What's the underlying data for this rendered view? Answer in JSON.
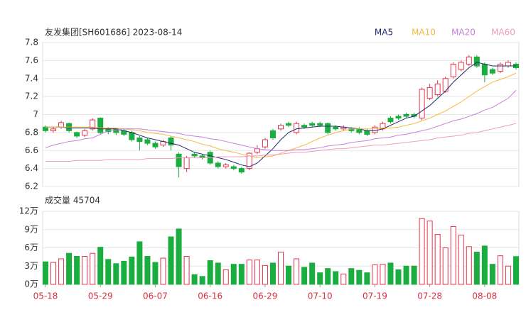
{
  "chart_data": [
    {
      "type": "candlestick",
      "title": "友发集团[SH601686] 2023-08-14",
      "up_color": "#e8334a",
      "down_color": "#1aad3f",
      "ylim": [
        6.2,
        7.8
      ],
      "yticks": [
        6.2,
        6.4,
        6.6,
        6.8,
        7,
        7.2,
        7.4,
        7.6,
        7.8
      ],
      "grid": true,
      "open": [
        6.86,
        6.82,
        6.86,
        6.9,
        6.8,
        6.77,
        6.84,
        6.96,
        6.84,
        6.84,
        6.82,
        6.8,
        6.74,
        6.72,
        6.68,
        6.66,
        6.74,
        6.56,
        6.4,
        6.56,
        6.54,
        6.58,
        6.46,
        6.42,
        6.42,
        6.4,
        6.4,
        6.58,
        6.64,
        6.82,
        6.84,
        6.9,
        6.8,
        6.88,
        6.9,
        6.9,
        6.9,
        6.86,
        6.84,
        6.84,
        6.84,
        6.82,
        6.8,
        6.84,
        6.96,
        6.98,
        7.0,
        7.0,
        6.96,
        7.18,
        7.22,
        7.26,
        7.42,
        7.5,
        7.56,
        7.64,
        7.56,
        7.5,
        7.48,
        7.54,
        7.56
      ],
      "high": [
        6.88,
        6.86,
        6.93,
        6.91,
        6.81,
        6.84,
        6.96,
        6.97,
        6.86,
        6.85,
        6.84,
        6.82,
        6.76,
        6.74,
        6.7,
        6.72,
        6.76,
        6.58,
        6.54,
        6.58,
        6.56,
        6.6,
        6.48,
        6.46,
        6.44,
        6.42,
        6.58,
        6.66,
        6.74,
        6.84,
        6.9,
        6.92,
        6.92,
        6.9,
        6.92,
        6.92,
        6.91,
        6.88,
        6.88,
        6.86,
        6.86,
        6.84,
        6.88,
        6.92,
        6.98,
        7.0,
        7.02,
        7.02,
        7.3,
        7.34,
        7.38,
        7.42,
        7.58,
        7.6,
        7.66,
        7.66,
        7.58,
        7.52,
        7.58,
        7.6,
        7.58
      ],
      "low": [
        6.8,
        6.8,
        6.84,
        6.8,
        6.74,
        6.75,
        6.82,
        6.78,
        6.78,
        6.77,
        6.76,
        6.7,
        6.6,
        6.66,
        6.62,
        6.64,
        6.6,
        6.3,
        6.36,
        6.52,
        6.5,
        6.44,
        6.4,
        6.4,
        6.38,
        6.34,
        6.38,
        6.56,
        6.62,
        6.72,
        6.82,
        6.86,
        6.78,
        6.84,
        6.86,
        6.86,
        6.78,
        6.82,
        6.82,
        6.8,
        6.78,
        6.76,
        6.78,
        6.82,
        6.9,
        6.94,
        6.96,
        6.96,
        6.94,
        7.16,
        7.2,
        7.24,
        7.4,
        7.48,
        7.54,
        7.52,
        7.36,
        7.44,
        7.46,
        7.52,
        7.5
      ],
      "close": [
        6.82,
        6.84,
        6.91,
        6.82,
        6.76,
        6.82,
        6.94,
        6.8,
        6.81,
        6.8,
        6.78,
        6.72,
        6.7,
        6.68,
        6.64,
        6.7,
        6.66,
        6.42,
        6.52,
        6.54,
        6.52,
        6.46,
        6.42,
        6.44,
        6.4,
        6.36,
        6.57,
        6.62,
        6.72,
        6.74,
        6.88,
        6.88,
        6.9,
        6.86,
        6.88,
        6.88,
        6.8,
        6.84,
        6.86,
        6.82,
        6.8,
        6.78,
        6.86,
        6.9,
        6.92,
        6.96,
        6.98,
        6.98,
        7.28,
        7.3,
        7.34,
        7.4,
        7.56,
        7.58,
        7.64,
        7.54,
        7.44,
        7.46,
        7.56,
        7.58,
        7.52
      ],
      "series": [
        {
          "name": "MA5",
          "color": "#1e2a6e",
          "values": [
            6.86,
            6.86,
            6.86,
            6.85,
            6.85,
            6.85,
            6.85,
            6.84,
            6.84,
            6.84,
            6.82,
            6.8,
            6.77,
            6.74,
            6.72,
            6.7,
            6.68,
            6.66,
            6.62,
            6.58,
            6.56,
            6.54,
            6.52,
            6.5,
            6.47,
            6.44,
            6.42,
            6.46,
            6.54,
            6.62,
            6.72,
            6.8,
            6.84,
            6.85,
            6.86,
            6.87,
            6.87,
            6.87,
            6.86,
            6.85,
            6.84,
            6.82,
            6.82,
            6.84,
            6.88,
            6.92,
            6.96,
            6.98,
            7.04,
            7.1,
            7.18,
            7.26,
            7.36,
            7.44,
            7.52,
            7.58,
            7.56,
            7.54,
            7.54,
            7.54,
            7.54
          ]
        },
        {
          "name": "MA10",
          "color": "#f5b942",
          "values": [
            6.86,
            6.86,
            6.86,
            6.86,
            6.86,
            6.86,
            6.86,
            6.85,
            6.85,
            6.85,
            6.84,
            6.83,
            6.82,
            6.8,
            6.79,
            6.78,
            6.76,
            6.74,
            6.72,
            6.7,
            6.67,
            6.65,
            6.62,
            6.6,
            6.58,
            6.56,
            6.54,
            6.52,
            6.53,
            6.54,
            6.57,
            6.6,
            6.63,
            6.66,
            6.7,
            6.74,
            6.77,
            6.8,
            6.82,
            6.84,
            6.84,
            6.84,
            6.84,
            6.85,
            6.85,
            6.86,
            6.88,
            6.9,
            6.93,
            6.96,
            7.0,
            7.04,
            7.09,
            7.14,
            7.2,
            7.26,
            7.31,
            7.36,
            7.39,
            7.42,
            7.46
          ]
        },
        {
          "name": "MA20",
          "color": "#c77ddc",
          "values": [
            6.63,
            6.66,
            6.68,
            6.7,
            6.71,
            6.73,
            6.74,
            6.78,
            6.82,
            6.83,
            6.84,
            6.84,
            6.84,
            6.83,
            6.82,
            6.81,
            6.8,
            6.79,
            6.77,
            6.76,
            6.75,
            6.73,
            6.72,
            6.7,
            6.68,
            6.66,
            6.64,
            6.62,
            6.61,
            6.6,
            6.6,
            6.6,
            6.61,
            6.61,
            6.62,
            6.63,
            6.65,
            6.66,
            6.67,
            6.69,
            6.7,
            6.71,
            6.73,
            6.74,
            6.75,
            6.77,
            6.78,
            6.8,
            6.82,
            6.84,
            6.87,
            6.9,
            6.93,
            6.95,
            6.98,
            7.01,
            7.05,
            7.08,
            7.13,
            7.18,
            7.27
          ]
        },
        {
          "name": "MA60",
          "color": "#f09ac0",
          "values": [
            6.48,
            6.48,
            6.48,
            6.48,
            6.49,
            6.49,
            6.49,
            6.49,
            6.5,
            6.5,
            6.5,
            6.5,
            6.5,
            6.51,
            6.51,
            6.51,
            6.51,
            6.52,
            6.52,
            6.52,
            6.52,
            6.52,
            6.53,
            6.53,
            6.53,
            6.53,
            6.54,
            6.54,
            6.55,
            6.55,
            6.56,
            6.57,
            6.58,
            6.58,
            6.59,
            6.6,
            6.61,
            6.62,
            6.62,
            6.63,
            6.64,
            6.65,
            6.66,
            6.66,
            6.67,
            6.68,
            6.69,
            6.7,
            6.71,
            6.72,
            6.74,
            6.75,
            6.76,
            6.77,
            6.79,
            6.8,
            6.82,
            6.84,
            6.86,
            6.88,
            6.9
          ]
        }
      ]
    },
    {
      "type": "bar",
      "title": "成交量 45704",
      "categories": [
        "05-18",
        null,
        null,
        null,
        null,
        null,
        null,
        "05-29",
        null,
        null,
        null,
        null,
        null,
        null,
        "06-07",
        null,
        null,
        null,
        null,
        null,
        null,
        "06-16",
        null,
        null,
        null,
        null,
        null,
        null,
        "06-29",
        null,
        null,
        null,
        null,
        null,
        null,
        "07-10",
        null,
        null,
        null,
        null,
        null,
        null,
        "07-19",
        null,
        null,
        null,
        null,
        null,
        null,
        "07-28",
        null,
        null,
        null,
        null,
        null,
        null,
        "08-08",
        null,
        null,
        null,
        null
      ],
      "values": [
        37000,
        36000,
        42000,
        51000,
        46000,
        46000,
        51000,
        61000,
        41000,
        34000,
        38000,
        45000,
        70000,
        46000,
        36000,
        43000,
        78000,
        91000,
        46000,
        16000,
        13000,
        39000,
        35000,
        24000,
        33000,
        33000,
        40000,
        40000,
        31000,
        35000,
        53000,
        30000,
        42000,
        28000,
        35000,
        19000,
        26000,
        21000,
        17000,
        26000,
        23000,
        19000,
        32000,
        33000,
        35000,
        24000,
        30000,
        30000,
        108000,
        104000,
        82000,
        60000,
        95000,
        81000,
        62000,
        53000,
        63000,
        33000,
        47000,
        30000,
        45704
      ],
      "ylim": [
        0,
        120000
      ],
      "yticks": [
        {
          "value": 0,
          "label": "0万"
        },
        {
          "value": 30000,
          "label": "3万"
        },
        {
          "value": 60000,
          "label": "6万"
        },
        {
          "value": 90000,
          "label": "9万"
        },
        {
          "value": 120000,
          "label": "12万"
        }
      ],
      "grid": true
    }
  ]
}
